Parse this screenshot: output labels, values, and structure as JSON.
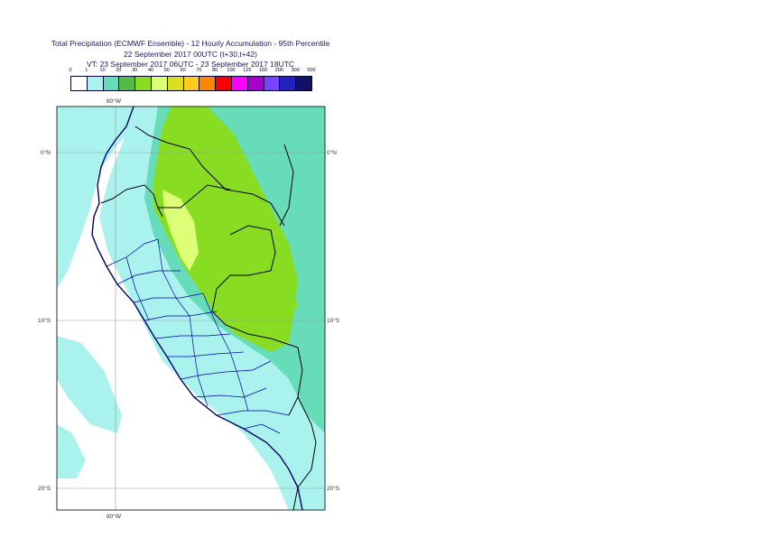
{
  "title": {
    "line1": "Total Precipitation (ECMWF Ensemble) - 12 Hourly Accumulation - 95th Percentile",
    "line2": "22 September 2017 00UTC (t+30,t+42)",
    "line3": "VT: 23 September 2017 06UTC - 23 September 2017 18UTC"
  },
  "legend": {
    "thresholds": [
      "0",
      "1",
      "10",
      "20",
      "30",
      "40",
      "50",
      "60",
      "70",
      "80",
      "100",
      "125",
      "150",
      "200",
      "300",
      "500"
    ],
    "colors": [
      "#ffffff",
      "#aaf2ee",
      "#66dcb9",
      "#55bb44",
      "#88dd22",
      "#ddff77",
      "#dddd22",
      "#ffcc22",
      "#ff8800",
      "#ff0000",
      "#ff00ff",
      "#aa00cc",
      "#7744ff",
      "#2222bb",
      "#111166"
    ]
  },
  "map": {
    "lon_labels": {
      "top": "80°W",
      "bottom": "80°W"
    },
    "lat_labels": [
      "0°N",
      "10°S",
      "20°S"
    ],
    "colors": {
      "ocean_light": "#aaf2ee",
      "teal": "#66dcb9",
      "green": "#88dd22",
      "yellow_green": "#ddff77",
      "grid": "#999999",
      "border": "#000000",
      "region": "#0000aa",
      "coast": "#000066"
    }
  }
}
